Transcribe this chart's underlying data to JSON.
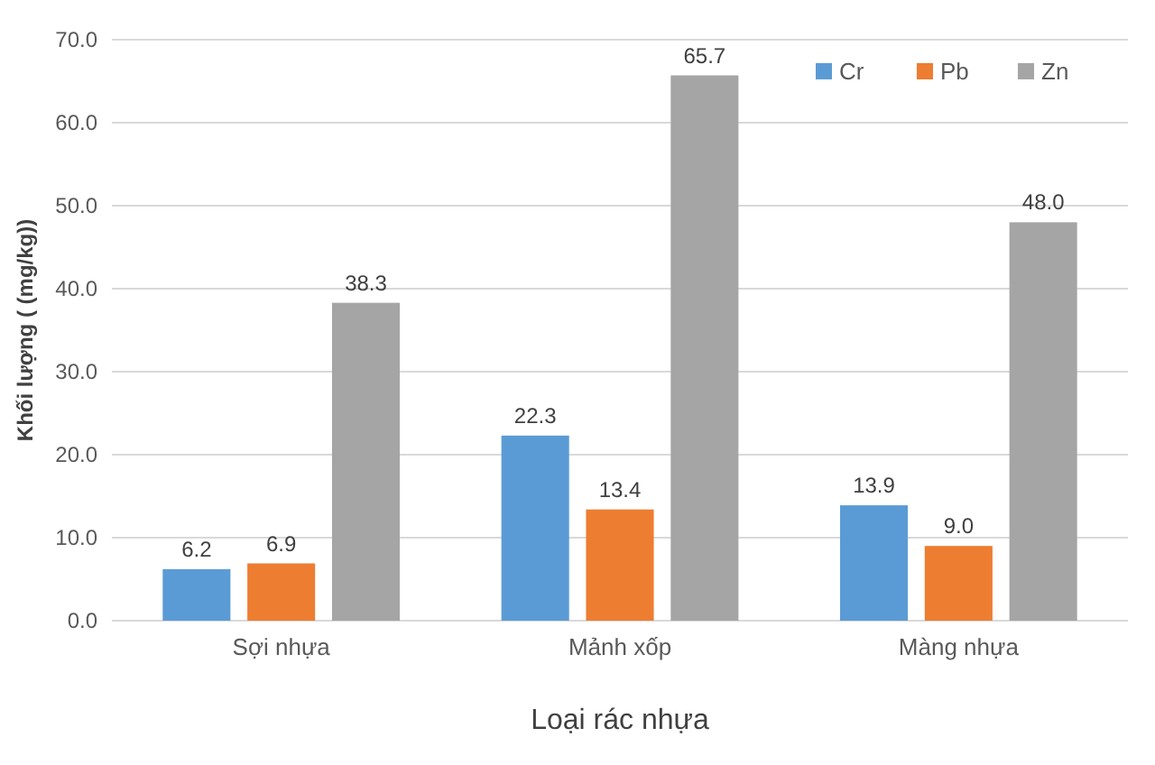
{
  "chart_data": {
    "type": "bar",
    "xlabel": "Loại rác nhựa",
    "ylabel": "Khối lượng ( (mg/kg))",
    "categories": [
      "Sợi nhựa",
      "Mảnh xốp",
      "Màng nhựa"
    ],
    "series": [
      {
        "name": "Cr",
        "color": "#5b9bd5",
        "values": [
          6.2,
          22.3,
          13.9
        ]
      },
      {
        "name": "Pb",
        "color": "#ed7d31",
        "values": [
          6.9,
          13.4,
          9.0
        ]
      },
      {
        "name": "Zn",
        "color": "#a5a5a5",
        "values": [
          38.3,
          65.7,
          48.0
        ]
      }
    ],
    "value_labels": [
      [
        "6.2",
        "22.3",
        "13.9"
      ],
      [
        "6.9",
        "13.4",
        "9.0"
      ],
      [
        "38.3",
        "65.7",
        "48.0"
      ]
    ],
    "ylim": [
      0,
      70
    ],
    "yticks": [
      {
        "value": 0,
        "label": "0.0"
      },
      {
        "value": 10,
        "label": "10.0"
      },
      {
        "value": 20,
        "label": "20.0"
      },
      {
        "value": 30,
        "label": "30.0"
      },
      {
        "value": 40,
        "label": "40.0"
      },
      {
        "value": 50,
        "label": "50.0"
      },
      {
        "value": 60,
        "label": "60.0"
      },
      {
        "value": 70,
        "label": "70.0"
      }
    ],
    "grid": "y",
    "legend": "top right"
  }
}
